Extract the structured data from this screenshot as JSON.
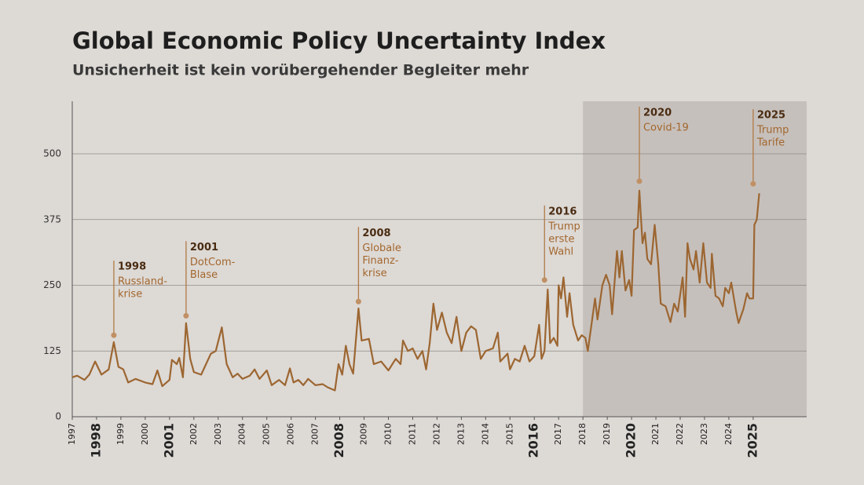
{
  "chart_data": {
    "type": "line",
    "title": "Global Economic Policy Uncertainty Index",
    "subtitle": "Unsicherheit ist kein vorübergehender Begleiter mehr",
    "xlim": [
      1997,
      2027.2
    ],
    "ylim": [
      0,
      600
    ],
    "xticks": [
      1997,
      1998,
      1999,
      2000,
      2001,
      2002,
      2003,
      2004,
      2005,
      2006,
      2007,
      2008,
      2009,
      2010,
      2011,
      2012,
      2013,
      2014,
      2015,
      2016,
      2017,
      2018,
      2019,
      2020,
      2021,
      2022,
      2023,
      2024,
      2025
    ],
    "emphasized_xticks": [
      1998,
      2001,
      2008,
      2016,
      2020,
      2025
    ],
    "yticks": [
      0,
      125,
      250,
      375,
      500
    ],
    "grid": true,
    "highlight_xrange": [
      2018,
      2027.2
    ],
    "highlight_color": "#c6c0bc",
    "series": [
      {
        "name": "Global Economic Policy Uncertainty Index",
        "color": "#9c6631",
        "x": [
          1997,
          1997.2,
          1997.5,
          1997.7,
          1997.94,
          1998.2,
          1998.5,
          1998.71,
          1998.9,
          1999.1,
          1999.3,
          1999.6,
          2000,
          2000.3,
          2000.5,
          2000.7,
          2001,
          2001.1,
          2001.3,
          2001.4,
          2001.55,
          2001.68,
          2001.85,
          2002,
          2002.3,
          2002.5,
          2002.7,
          2002.9,
          2003.15,
          2003.35,
          2003.6,
          2003.8,
          2004,
          2004.3,
          2004.5,
          2004.7,
          2005,
          2005.2,
          2005.5,
          2005.75,
          2005.95,
          2006.1,
          2006.3,
          2006.5,
          2006.7,
          2007,
          2007.3,
          2007.5,
          2007.8,
          2007.95,
          2008.1,
          2008.25,
          2008.4,
          2008.55,
          2008.77,
          2008.9,
          2009.2,
          2009.4,
          2009.7,
          2010,
          2010.3,
          2010.5,
          2010.6,
          2010.8,
          2011,
          2011.2,
          2011.4,
          2011.55,
          2011.7,
          2011.85,
          2012,
          2012.2,
          2012.4,
          2012.6,
          2012.8,
          2013,
          2013.2,
          2013.4,
          2013.6,
          2013.8,
          2014,
          2014.3,
          2014.5,
          2014.6,
          2014.9,
          2015,
          2015.2,
          2015.4,
          2015.6,
          2015.8,
          2016,
          2016.2,
          2016.3,
          2016.42,
          2016.55,
          2016.65,
          2016.8,
          2016.95,
          2017,
          2017.1,
          2017.2,
          2017.35,
          2017.45,
          2017.6,
          2017.8,
          2017.95,
          2018.1,
          2018.2,
          2018.35,
          2018.5,
          2018.6,
          2018.8,
          2018.95,
          2019.1,
          2019.2,
          2019.4,
          2019.5,
          2019.6,
          2019.75,
          2019.9,
          2020,
          2020.1,
          2020.25,
          2020.32,
          2020.45,
          2020.55,
          2020.65,
          2020.8,
          2020.95,
          2021.1,
          2021.2,
          2021.4,
          2021.6,
          2021.75,
          2021.9,
          2022.1,
          2022.2,
          2022.3,
          2022.4,
          2022.55,
          2022.65,
          2022.8,
          2022.95,
          2023.1,
          2023.25,
          2023.3,
          2023.45,
          2023.6,
          2023.75,
          2023.85,
          2024,
          2024.1,
          2024.3,
          2024.4,
          2024.6,
          2024.75,
          2024.85,
          2025,
          2025.05,
          2025.15,
          2025.25
        ],
        "values": [
          75,
          78,
          70,
          80,
          105,
          80,
          90,
          142,
          95,
          90,
          65,
          72,
          65,
          62,
          88,
          58,
          70,
          108,
          100,
          112,
          75,
          178,
          110,
          85,
          80,
          100,
          120,
          125,
          170,
          100,
          75,
          82,
          72,
          78,
          90,
          72,
          88,
          60,
          70,
          60,
          92,
          65,
          70,
          60,
          72,
          60,
          62,
          56,
          50,
          100,
          80,
          135,
          100,
          82,
          206,
          145,
          148,
          100,
          105,
          88,
          110,
          100,
          145,
          125,
          130,
          110,
          125,
          90,
          140,
          215,
          165,
          198,
          160,
          140,
          190,
          125,
          160,
          172,
          165,
          110,
          125,
          130,
          160,
          105,
          120,
          90,
          110,
          105,
          135,
          105,
          115,
          175,
          110,
          125,
          242,
          140,
          150,
          135,
          250,
          225,
          265,
          190,
          235,
          175,
          145,
          155,
          150,
          125,
          175,
          225,
          185,
          250,
          270,
          250,
          195,
          315,
          265,
          315,
          240,
          260,
          230,
          355,
          360,
          430,
          330,
          350,
          300,
          290,
          365,
          290,
          215,
          210,
          180,
          215,
          200,
          265,
          190,
          330,
          300,
          280,
          315,
          255,
          330,
          255,
          245,
          310,
          230,
          225,
          210,
          245,
          235,
          255,
          200,
          178,
          205,
          235,
          225,
          225,
          365,
          375,
          425
        ]
      }
    ],
    "annotations": [
      {
        "label": "1998",
        "text": [
          "Russland-",
          "krise"
        ],
        "x": 1998.71,
        "y": 155
      },
      {
        "label": "2001",
        "text": [
          "DotCom-",
          "Blase"
        ],
        "x": 2001.68,
        "y": 192
      },
      {
        "label": "2008",
        "text": [
          "Globale",
          "Finanz-",
          "krise"
        ],
        "x": 2008.77,
        "y": 219
      },
      {
        "label": "2016",
        "text": [
          "Trump",
          "erste",
          "Wahl"
        ],
        "x": 2016.42,
        "y": 260
      },
      {
        "label": "2020",
        "text": [
          "Covid-19"
        ],
        "x": 2020.32,
        "y": 448
      },
      {
        "label": "2025",
        "text": [
          "Trump",
          "Tarife"
        ],
        "x": 2025.0,
        "y": 443
      }
    ]
  }
}
